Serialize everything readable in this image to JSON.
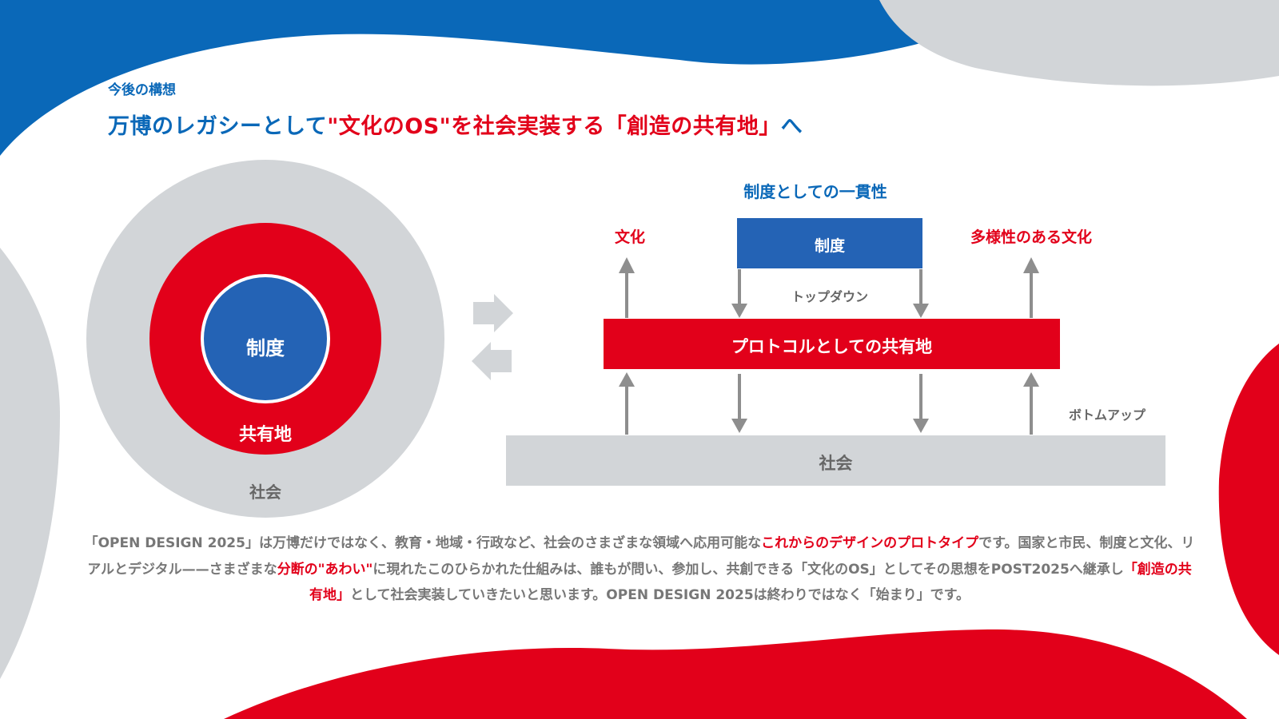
{
  "header": {
    "kicker": "今後の構想",
    "title_part1": "万博のレガシーとして",
    "title_part2": "\"文化のOS\"を社会実装する「創造の共有地」",
    "title_part3": "へ"
  },
  "circle_diagram": {
    "inner_label": "制度",
    "middle_label": "共有地",
    "outer_label": "社会"
  },
  "flow_diagram": {
    "top_title": "制度としての一貫性",
    "left_label": "文化",
    "right_label": "多様性のある文化",
    "institution_box": "制度",
    "top_down": "トップダウン",
    "protocol_bar": "プロトコルとしての共有地",
    "bottom_up": "ボトムアップ",
    "society_bar": "社会"
  },
  "description": {
    "p1": "「OPEN DESIGN 2025」は万博だけではなく、教育・地域・行政など、社会のさまざまな領域へ応用可能な",
    "p1_highlight": "これからのデザインのプロトタイプ",
    "p2": "です。国家と市民、制度と文化、リアルとデジタル——さまざまな",
    "p2_highlight": "分断の\"あわい\"",
    "p3": "に現れたこのひらかれた仕組みは、誰もが問い、参加し、共創できる「文化のOS」としてその思想をPOST2025へ継承し",
    "p3_highlight": "「創造の共有地」",
    "p4": "として社会実装していきたいと思います。OPEN DESIGN 2025は終わりではなく「始まり」です。"
  },
  "colors": {
    "blue": "#0a68b8",
    "red": "#e2001a",
    "gray": "#d2d5d8",
    "institution_blue": "#2463b5"
  }
}
